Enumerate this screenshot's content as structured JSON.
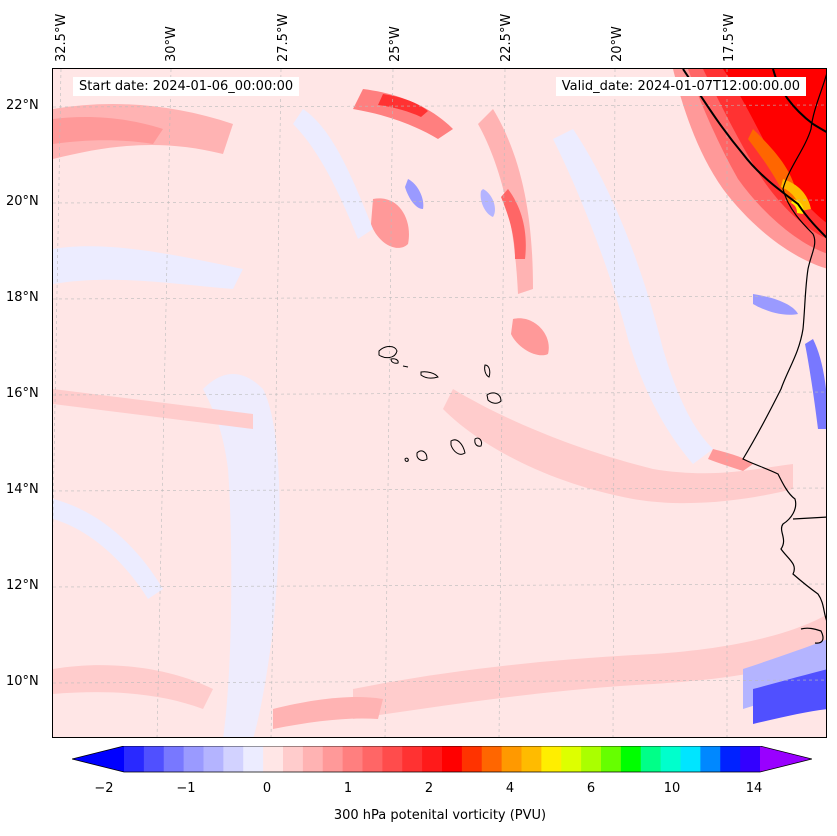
{
  "map": {
    "start_label": "Start date: 2024-01-06_00:00:00",
    "valid_label": "Valid_date: 2024-01-07T12:00:00.00",
    "lon_labels": [
      "32.5°W",
      "30°W",
      "27.5°W",
      "25°W",
      "22.5°W",
      "20°W",
      "17.5°W"
    ],
    "lat_labels": [
      "22°N",
      "20°N",
      "18°N",
      "16°N",
      "14°N",
      "12°N",
      "10°N"
    ],
    "region": "Cabo Verde and West African coast",
    "field": "300 hPa potential vorticity"
  },
  "colorbar": {
    "label": "300 hPa potenital vorticity (PVU)",
    "tick_labels": [
      "−2",
      "−1",
      "0",
      "1",
      "2",
      "4",
      "6",
      "10",
      "14"
    ],
    "colors": [
      "#0000ff",
      "#2929ff",
      "#5050ff",
      "#7878ff",
      "#9a9aff",
      "#b4b4ff",
      "#d2d2ff",
      "#ececff",
      "#ffe6e6",
      "#ffcccc",
      "#ffb3b3",
      "#ff9999",
      "#ff7f7f",
      "#ff6666",
      "#ff4c4c",
      "#ff3232",
      "#ff1a1a",
      "#ff0000",
      "#ff3300",
      "#ff6600",
      "#ff9900",
      "#ffbb00",
      "#ffee00",
      "#ddff00",
      "#aaff00",
      "#66ff00",
      "#00ff00",
      "#00ff88",
      "#00ffcc",
      "#00e5ff",
      "#0088ff",
      "#0022ff",
      "#3300ff",
      "#9900ff"
    ],
    "extend": "both"
  }
}
